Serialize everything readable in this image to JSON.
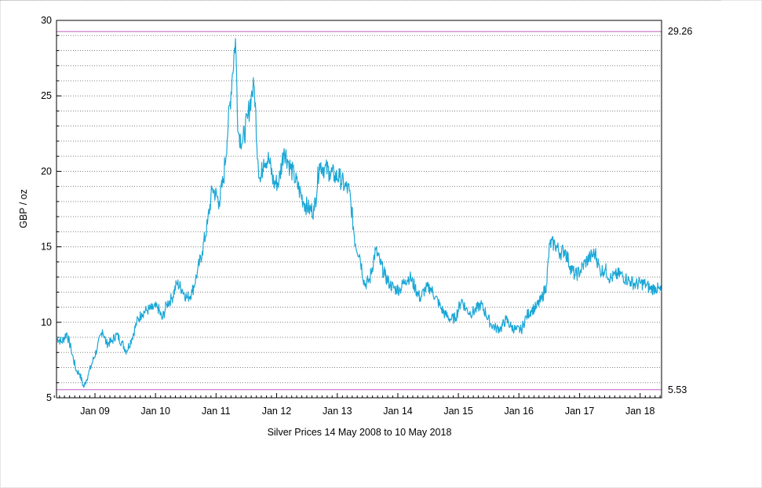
{
  "chart_data": {
    "type": "line",
    "title": "",
    "xlabel": "Silver Prices 14 May 2008 to 10 May 2018",
    "ylabel": "GBP / oz",
    "ylim": [
      5,
      30
    ],
    "xlim": [
      "2008-05-14",
      "2018-05-10"
    ],
    "yticks": [
      "5",
      "10",
      "15",
      "20",
      "25",
      "30"
    ],
    "xticks": [
      {
        "label": "Jan 09",
        "date": "2009-01-01"
      },
      {
        "label": "Jan 10",
        "date": "2010-01-01"
      },
      {
        "label": "Jan 11",
        "date": "2011-01-01"
      },
      {
        "label": "Jan 12",
        "date": "2012-01-01"
      },
      {
        "label": "Jan 13",
        "date": "2013-01-01"
      },
      {
        "label": "Jan 14",
        "date": "2014-01-01"
      },
      {
        "label": "Jan 15",
        "date": "2015-01-01"
      },
      {
        "label": "Jan 16",
        "date": "2016-01-01"
      },
      {
        "label": "Jan 17",
        "date": "2017-01-01"
      },
      {
        "label": "Jan 18",
        "date": "2018-01-01"
      }
    ],
    "grid": true,
    "reference_lines": [
      {
        "label": "29.26",
        "value": 29.26,
        "kind": "max"
      },
      {
        "label": "5.53",
        "value": 5.53,
        "kind": "min"
      }
    ],
    "colors": {
      "series": "#1ba7d6",
      "reference": "#c060c0",
      "grid": "#808080"
    },
    "series": [
      {
        "x": [
          "2008-05-14",
          "2008-06-15",
          "2008-07-15",
          "2008-08-10",
          "2008-09-10",
          "2008-10-01",
          "2008-10-25",
          "2008-11-20",
          "2008-12-15",
          "2009-01-15",
          "2009-02-15",
          "2009-03-10",
          "2009-04-10",
          "2009-05-10",
          "2009-06-10",
          "2009-07-10",
          "2009-08-10",
          "2009-09-10",
          "2009-10-10",
          "2009-11-10",
          "2009-12-10",
          "2010-01-15",
          "2010-02-10",
          "2010-03-10",
          "2010-04-10",
          "2010-05-10",
          "2010-06-10",
          "2010-07-10",
          "2010-08-10",
          "2010-09-10",
          "2010-10-10",
          "2010-11-10",
          "2010-12-10",
          "2011-01-20",
          "2011-02-15",
          "2011-03-15",
          "2011-04-10",
          "2011-04-28",
          "2011-05-15",
          "2011-06-10",
          "2011-07-10",
          "2011-08-01",
          "2011-08-20",
          "2011-09-10",
          "2011-09-25",
          "2011-10-15",
          "2011-11-15",
          "2011-12-15",
          "2012-01-15",
          "2012-02-15",
          "2012-03-15",
          "2012-04-15",
          "2012-05-15",
          "2012-06-15",
          "2012-07-15",
          "2012-08-15",
          "2012-09-15",
          "2012-10-15",
          "2012-11-15",
          "2012-12-15",
          "2013-01-15",
          "2013-02-15",
          "2013-03-15",
          "2013-04-20",
          "2013-05-15",
          "2013-06-15",
          "2013-07-15",
          "2013-08-20",
          "2013-09-15",
          "2013-10-15",
          "2013-11-15",
          "2013-12-15",
          "2014-01-15",
          "2014-02-15",
          "2014-03-15",
          "2014-04-15",
          "2014-05-15",
          "2014-06-15",
          "2014-07-15",
          "2014-08-15",
          "2014-09-15",
          "2014-10-15",
          "2014-11-15",
          "2014-12-15",
          "2015-01-20",
          "2015-02-15",
          "2015-03-15",
          "2015-04-15",
          "2015-05-15",
          "2015-06-15",
          "2015-07-15",
          "2015-08-15",
          "2015-09-15",
          "2015-10-15",
          "2015-11-15",
          "2015-12-15",
          "2016-01-15",
          "2016-02-15",
          "2016-03-15",
          "2016-04-15",
          "2016-05-15",
          "2016-06-15",
          "2016-07-05",
          "2016-08-05",
          "2016-09-05",
          "2016-10-05",
          "2016-11-05",
          "2016-12-05",
          "2017-01-05",
          "2017-02-05",
          "2017-03-05",
          "2017-04-05",
          "2017-05-05",
          "2017-06-05",
          "2017-07-05",
          "2017-08-05",
          "2017-09-05",
          "2017-10-05",
          "2017-11-05",
          "2017-12-05",
          "2018-01-05",
          "2018-02-05",
          "2018-03-05",
          "2018-04-05",
          "2018-05-10"
        ],
        "values": [
          9.0,
          8.7,
          9.3,
          8.2,
          6.8,
          6.6,
          5.7,
          6.5,
          7.3,
          8.3,
          9.5,
          8.6,
          8.7,
          9.2,
          8.7,
          8.1,
          8.9,
          10.0,
          10.6,
          10.8,
          10.9,
          11.0,
          10.2,
          11.2,
          11.6,
          12.6,
          12.2,
          11.6,
          12.0,
          13.3,
          14.7,
          16.5,
          18.9,
          18.0,
          19.5,
          23.0,
          26.5,
          28.8,
          22.6,
          21.9,
          23.5,
          25.0,
          25.6,
          20.8,
          19.3,
          20.8,
          20.8,
          19.2,
          19.3,
          21.5,
          20.5,
          19.7,
          18.8,
          17.9,
          17.5,
          17.4,
          20.5,
          20.2,
          20.0,
          19.7,
          19.6,
          19.0,
          18.7,
          15.2,
          14.5,
          12.5,
          12.8,
          14.8,
          14.0,
          13.1,
          12.5,
          12.2,
          12.2,
          12.8,
          13.0,
          12.3,
          11.6,
          12.2,
          12.3,
          11.7,
          11.0,
          10.5,
          10.2,
          10.3,
          11.5,
          10.9,
          10.6,
          10.8,
          11.2,
          10.6,
          9.9,
          9.6,
          9.6,
          10.2,
          9.7,
          9.5,
          9.5,
          10.4,
          10.8,
          11.0,
          11.5,
          12.5,
          15.2,
          15.2,
          14.6,
          14.8,
          13.7,
          13.1,
          13.4,
          14.0,
          14.3,
          14.6,
          13.4,
          13.5,
          12.9,
          13.1,
          13.2,
          12.9,
          12.7,
          12.5,
          12.6,
          12.5,
          12.2,
          12.3,
          12.0
        ]
      }
    ]
  }
}
